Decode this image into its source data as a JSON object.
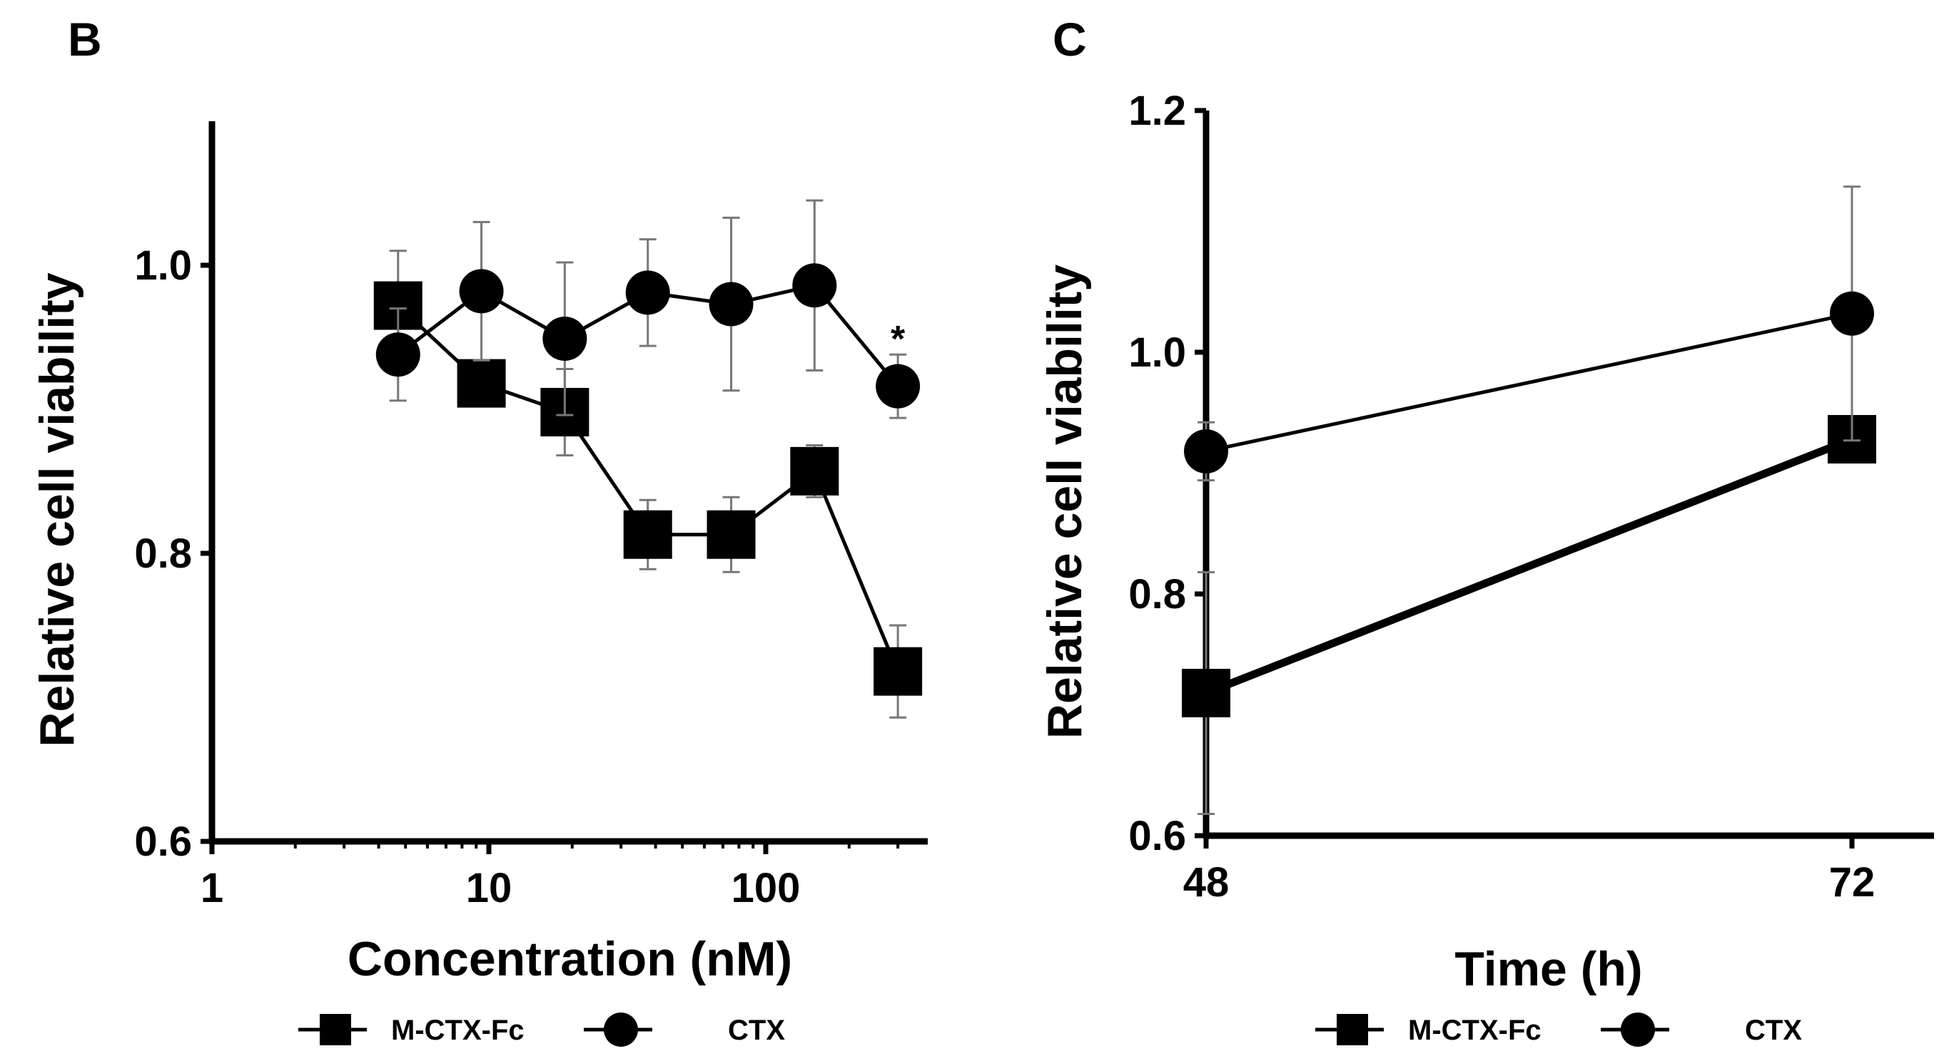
{
  "chart_data": [
    {
      "panel": "B",
      "type": "line",
      "xlabel": "Concentration (nM)",
      "ylabel": "Relative cell viability",
      "xscale": "log",
      "xlim": [
        1,
        350
      ],
      "ylim": [
        0.6,
        1.1
      ],
      "xticks": [
        1,
        10,
        100
      ],
      "xtick_labels": [
        "1",
        "10",
        "100"
      ],
      "yticks": [
        0.6,
        0.8,
        1.0
      ],
      "ytick_labels": [
        "0.6",
        "0.8",
        "1.0"
      ],
      "legend_position": "bottom",
      "series": [
        {
          "name": "M-CTX-Fc",
          "marker": "square",
          "x": [
            4.7,
            9.4,
            18.8,
            37.5,
            75,
            150,
            300
          ],
          "y": [
            0.972,
            0.918,
            0.898,
            0.813,
            0.813,
            0.857,
            0.718
          ],
          "err": [
            0.038,
            0.0,
            0.03,
            0.024,
            0.026,
            0.018,
            0.032
          ]
        },
        {
          "name": "CTX",
          "marker": "circle",
          "x": [
            4.7,
            9.4,
            18.8,
            37.5,
            75,
            150,
            300
          ],
          "y": [
            0.938,
            0.982,
            0.949,
            0.981,
            0.973,
            0.986,
            0.916
          ],
          "err": [
            0.032,
            0.048,
            0.053,
            0.037,
            0.06,
            0.059,
            0.022
          ]
        }
      ],
      "annotations": [
        {
          "text": "*",
          "x": 300,
          "y": 0.945
        }
      ]
    },
    {
      "panel": "C",
      "type": "line",
      "xlabel": "Time (h)",
      "ylabel": "Relative cell viability",
      "xlim": [
        48,
        74
      ],
      "ylim": [
        0.6,
        1.2
      ],
      "xticks": [
        48,
        72
      ],
      "xtick_labels": [
        "48",
        "72"
      ],
      "yticks": [
        0.6,
        0.8,
        1.0,
        1.2
      ],
      "ytick_labels": [
        "0.6",
        "0.8",
        "1.0",
        "1.2"
      ],
      "legend_position": "bottom",
      "series": [
        {
          "name": "M-CTX-Fc",
          "marker": "square",
          "x": [
            48,
            72
          ],
          "y": [
            0.718,
            0.928
          ],
          "err": [
            0.1,
            0.0
          ]
        },
        {
          "name": "CTX",
          "marker": "circle",
          "x": [
            48,
            72
          ],
          "y": [
            0.918,
            1.032
          ],
          "err": [
            0.024,
            0.105
          ]
        }
      ]
    }
  ]
}
